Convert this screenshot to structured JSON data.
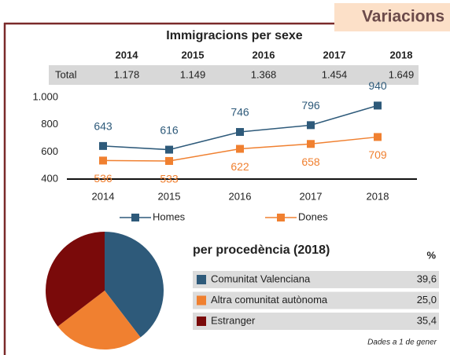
{
  "header": {
    "title": "Variacions"
  },
  "table": {
    "columns": [
      "2014",
      "2015",
      "2016",
      "2017",
      "2018"
    ],
    "row_label": "Total",
    "values": [
      "1.178",
      "1.149",
      "1.368",
      "1.454",
      "1.649"
    ]
  },
  "chart_data": [
    {
      "type": "line",
      "title": "Immigracions per sexe",
      "categories": [
        "2014",
        "2015",
        "2016",
        "2017",
        "2018"
      ],
      "series": [
        {
          "name": "Homes",
          "color": "#2e5a7a",
          "values": [
            643,
            616,
            746,
            796,
            940
          ]
        },
        {
          "name": "Dones",
          "color": "#f08030",
          "values": [
            536,
            533,
            622,
            658,
            709
          ]
        }
      ],
      "ylim": [
        400,
        1000
      ],
      "yticks": [
        {
          "value": 1000,
          "label": "1.000"
        },
        800,
        600,
        400
      ],
      "grid": false,
      "legend": "bottom"
    },
    {
      "type": "pie",
      "title": "per procedència (2018)",
      "value_header": "%",
      "categories": [
        "Comunitat Valenciana",
        "Altra comunitat autònoma",
        "Estranger"
      ],
      "values": [
        39.6,
        25.0,
        35.4
      ],
      "value_labels": [
        "39,6",
        "25,0",
        "35,4"
      ],
      "colors": [
        "#2e5a7a",
        "#f08030",
        "#7a0a0a"
      ],
      "note": "Dades a 1 de gener"
    }
  ]
}
